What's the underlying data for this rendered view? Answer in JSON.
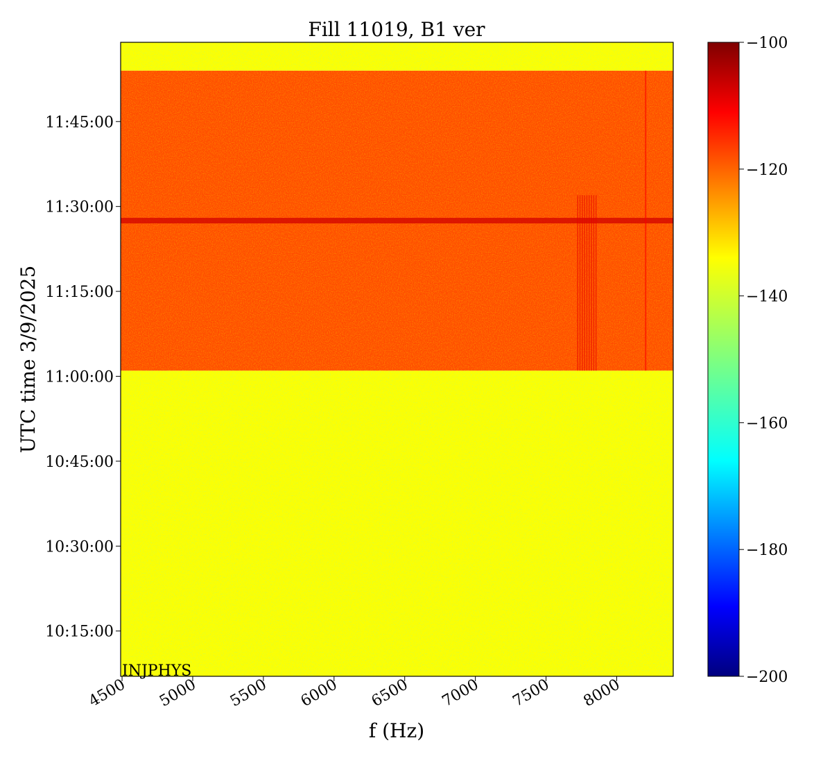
{
  "chart_data": {
    "type": "heatmap",
    "title": "Fill 11019, B1 ver",
    "xlabel": "f (Hz)",
    "ylabel": "UTC time 3/9/2025",
    "xlim": [
      4490,
      8400
    ],
    "x_ticks": [
      "4500",
      "5000",
      "5500",
      "6000",
      "6500",
      "7000",
      "7500",
      "8000"
    ],
    "x_tick_values": [
      4500,
      5000,
      5500,
      6000,
      6500,
      7000,
      7500,
      8000
    ],
    "ylim": [
      "10:07:00",
      "11:59:00"
    ],
    "y_ticks": [
      "10:15:00",
      "10:30:00",
      "10:45:00",
      "11:00:00",
      "11:15:00",
      "11:30:00",
      "11:45:00"
    ],
    "y_tick_minutes": [
      15,
      30,
      45,
      60,
      75,
      90,
      105
    ],
    "colorbar": {
      "colormap": "jet",
      "range": [
        -200,
        -100
      ],
      "ticks": [
        "−100",
        "−120",
        "−140",
        "−160",
        "−180",
        "−200"
      ],
      "tick_values": [
        -100,
        -120,
        -140,
        -160,
        -180,
        -200
      ]
    },
    "regions": [
      {
        "freq_range": [
          4490,
          8400
        ],
        "time_range": [
          "10:07:00",
          "11:01:00"
        ],
        "level_db": -138
      },
      {
        "freq_range": [
          4490,
          8400
        ],
        "time_range": [
          "11:01:00",
          "11:54:00"
        ],
        "level_db": -120
      },
      {
        "freq_range": [
          4490,
          8400
        ],
        "time_range": [
          "11:54:00",
          "11:59:00"
        ],
        "level_db": -138
      }
    ],
    "features": [
      {
        "kind": "horizontal_band",
        "time": "11:27:30",
        "level_db": -108
      },
      {
        "kind": "vertical_lines",
        "freq_range": [
          7720,
          7850
        ],
        "time_range": [
          "11:01:00",
          "11:32:00"
        ],
        "level_db": -110
      },
      {
        "kind": "vertical_line",
        "freq": 8200,
        "time_range": [
          "11:01:00",
          "11:54:00"
        ],
        "level_db": -112
      }
    ],
    "annotation": "INJPHYS"
  },
  "colors": {
    "quiet_level": "#dcef3a",
    "active_level": "#ff5a12",
    "band": "#c80000"
  }
}
